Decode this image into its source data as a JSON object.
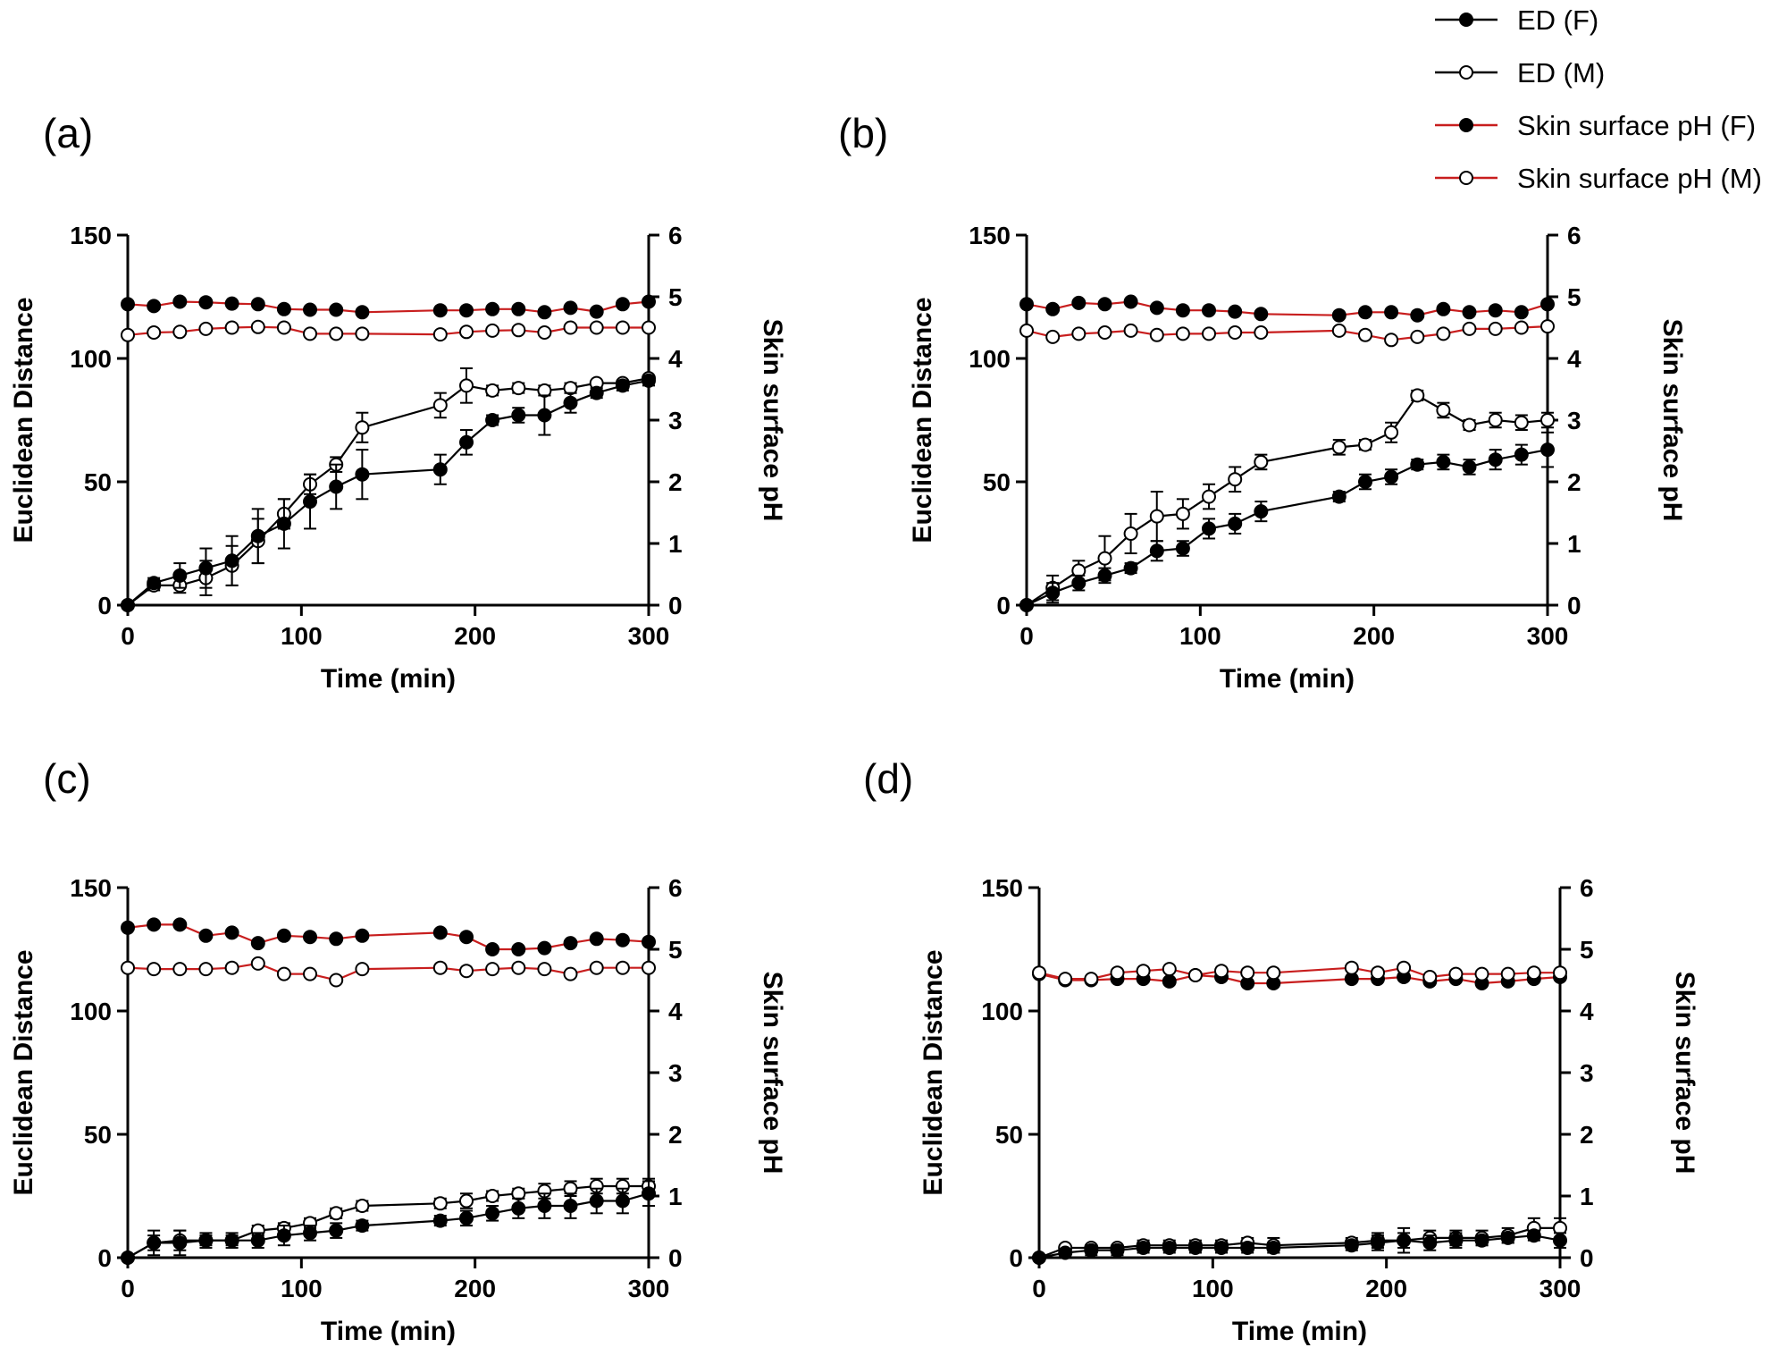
{
  "colors": {
    "ed_line": "#000000",
    "ph_line": "#c81e1e",
    "marker": "#000000"
  },
  "legend": [
    {
      "label": "ED (F)",
      "line": "black",
      "marker": "filled"
    },
    {
      "label": "ED (M)",
      "line": "black",
      "marker": "open"
    },
    {
      "label": "Skin surface pH (F)",
      "line": "red",
      "marker": "filled"
    },
    {
      "label": "Skin surface pH (M)",
      "line": "red",
      "marker": "open"
    }
  ],
  "chart_data": [
    {
      "panel": "(a)",
      "type": "line",
      "xlabel": "Time (min)",
      "ylabel": "Euclidean Distance",
      "y2label": "Skin surface pH",
      "xlim": [
        0,
        300
      ],
      "ylim": [
        0,
        150
      ],
      "y2lim": [
        0,
        6
      ],
      "xticks": [
        "0",
        "100",
        "200",
        "300"
      ],
      "yticks": [
        "0",
        "50",
        "100",
        "150"
      ],
      "y2ticks": [
        "0",
        "1",
        "2",
        "3",
        "4",
        "5",
        "6"
      ],
      "x": [
        0,
        15,
        30,
        45,
        60,
        75,
        90,
        105,
        120,
        135,
        180,
        195,
        210,
        225,
        240,
        255,
        270,
        285,
        300
      ],
      "series": [
        {
          "name": "ED (F)",
          "axis": "left",
          "values": [
            0,
            9,
            12,
            15,
            18,
            28,
            33,
            42,
            48,
            53,
            55,
            66,
            75,
            77,
            77,
            82,
            86,
            89,
            91
          ],
          "err": [
            0,
            2,
            5,
            8,
            10,
            11,
            10,
            11,
            9,
            10,
            6,
            5,
            2,
            3,
            8,
            4,
            2,
            2,
            2
          ]
        },
        {
          "name": "ED (M)",
          "axis": "left",
          "values": [
            0,
            8,
            8,
            11,
            16,
            26,
            37,
            49,
            57,
            72,
            81,
            89,
            87,
            88,
            87,
            88,
            90,
            90,
            92
          ],
          "err": [
            0,
            2,
            3,
            7,
            8,
            9,
            6,
            4,
            3,
            6,
            5,
            7,
            2,
            2,
            2,
            2,
            1,
            1,
            1
          ]
        },
        {
          "name": "Skin surface pH (F)",
          "axis": "right",
          "values": [
            4.88,
            4.85,
            4.92,
            4.91,
            4.89,
            4.88,
            4.8,
            4.79,
            4.79,
            4.75,
            4.78,
            4.78,
            4.8,
            4.8,
            4.75,
            4.82,
            4.76,
            4.88,
            4.92
          ]
        },
        {
          "name": "Skin surface pH (M)",
          "axis": "right",
          "values": [
            4.38,
            4.42,
            4.43,
            4.48,
            4.5,
            4.51,
            4.5,
            4.4,
            4.4,
            4.4,
            4.39,
            4.43,
            4.45,
            4.46,
            4.42,
            4.5,
            4.5,
            4.5,
            4.5
          ]
        }
      ]
    },
    {
      "panel": "(b)",
      "type": "line",
      "xlabel": "Time (min)",
      "ylabel": "Euclidean Distance",
      "y2label": "Skin surface pH",
      "xlim": [
        0,
        300
      ],
      "ylim": [
        0,
        150
      ],
      "y2lim": [
        0,
        6
      ],
      "xticks": [
        "0",
        "100",
        "200",
        "300"
      ],
      "yticks": [
        "0",
        "50",
        "100",
        "150"
      ],
      "y2ticks": [
        "0",
        "1",
        "2",
        "3",
        "4",
        "5",
        "6"
      ],
      "x": [
        0,
        15,
        30,
        45,
        60,
        75,
        90,
        105,
        120,
        135,
        180,
        195,
        210,
        225,
        240,
        255,
        270,
        285,
        300
      ],
      "series": [
        {
          "name": "ED (F)",
          "axis": "left",
          "values": [
            0,
            5,
            9,
            12,
            15,
            22,
            23,
            31,
            33,
            38,
            44,
            50,
            52,
            57,
            58,
            56,
            59,
            61,
            63
          ],
          "err": [
            0,
            4,
            3,
            3,
            2,
            4,
            3,
            4,
            4,
            4,
            2,
            3,
            3,
            2,
            3,
            3,
            4,
            4,
            7
          ]
        },
        {
          "name": "ED (M)",
          "axis": "left",
          "values": [
            0,
            7,
            14,
            19,
            29,
            36,
            37,
            44,
            51,
            58,
            64,
            65,
            70,
            85,
            79,
            73,
            75,
            74,
            75
          ],
          "err": [
            0,
            5,
            4,
            9,
            8,
            10,
            6,
            5,
            5,
            3,
            3,
            2,
            4,
            2,
            3,
            2,
            3,
            3,
            3
          ]
        },
        {
          "name": "Skin surface pH (F)",
          "axis": "right",
          "values": [
            4.88,
            4.8,
            4.9,
            4.88,
            4.92,
            4.82,
            4.78,
            4.78,
            4.76,
            4.72,
            4.7,
            4.75,
            4.75,
            4.7,
            4.8,
            4.75,
            4.78,
            4.75,
            4.88
          ]
        },
        {
          "name": "Skin surface pH (M)",
          "axis": "right",
          "values": [
            4.45,
            4.35,
            4.4,
            4.42,
            4.45,
            4.38,
            4.4,
            4.4,
            4.42,
            4.42,
            4.45,
            4.38,
            4.3,
            4.35,
            4.4,
            4.48,
            4.48,
            4.5,
            4.52
          ]
        }
      ]
    },
    {
      "panel": "(c)",
      "type": "line",
      "xlabel": "Time (min)",
      "ylabel": "Euclidean Distance",
      "y2label": "Skin surface pH",
      "xlim": [
        0,
        300
      ],
      "ylim": [
        0,
        150
      ],
      "y2lim": [
        0,
        6
      ],
      "xticks": [
        "0",
        "100",
        "200",
        "300"
      ],
      "yticks": [
        "0",
        "50",
        "100",
        "150"
      ],
      "y2ticks": [
        "0",
        "1",
        "2",
        "3",
        "4",
        "5",
        "6"
      ],
      "x": [
        0,
        15,
        30,
        45,
        60,
        75,
        90,
        105,
        120,
        135,
        180,
        195,
        210,
        225,
        240,
        255,
        270,
        285,
        300
      ],
      "series": [
        {
          "name": "ED (F)",
          "axis": "left",
          "values": [
            0,
            6,
            6,
            7,
            7,
            7,
            9,
            10,
            11,
            13,
            15,
            16,
            18,
            20,
            21,
            21,
            23,
            23,
            26
          ],
          "err": [
            0,
            5,
            5,
            3,
            3,
            3,
            4,
            3,
            3,
            2,
            2,
            3,
            3,
            4,
            5,
            5,
            5,
            5,
            5
          ]
        },
        {
          "name": "ED (M)",
          "axis": "left",
          "values": [
            0,
            6,
            7,
            7,
            7,
            11,
            12,
            14,
            18,
            21,
            22,
            23,
            25,
            26,
            27,
            28,
            29,
            29,
            29
          ],
          "err": [
            0,
            3,
            4,
            2,
            2,
            2,
            2,
            2,
            2,
            2,
            2,
            3,
            2,
            2,
            3,
            3,
            3,
            3,
            3
          ]
        },
        {
          "name": "Skin surface pH (F)",
          "axis": "right",
          "values": [
            5.35,
            5.4,
            5.4,
            5.22,
            5.27,
            5.1,
            5.22,
            5.2,
            5.17,
            5.22,
            5.27,
            5.2,
            5.0,
            5.0,
            5.02,
            5.1,
            5.17,
            5.15,
            5.12
          ]
        },
        {
          "name": "Skin surface pH (M)",
          "axis": "right",
          "values": [
            4.7,
            4.68,
            4.68,
            4.68,
            4.7,
            4.77,
            4.6,
            4.6,
            4.5,
            4.68,
            4.7,
            4.65,
            4.68,
            4.7,
            4.68,
            4.6,
            4.7,
            4.7,
            4.7
          ]
        }
      ]
    },
    {
      "panel": "(d)",
      "type": "line",
      "xlabel": "Time (min)",
      "ylabel": "Euclidean Distance",
      "y2label": "Skin surface pH",
      "xlim": [
        0,
        300
      ],
      "ylim": [
        0,
        150
      ],
      "y2lim": [
        0,
        6
      ],
      "xticks": [
        "0",
        "100",
        "200",
        "300"
      ],
      "yticks": [
        "0",
        "50",
        "100",
        "150"
      ],
      "y2ticks": [
        "0",
        "1",
        "2",
        "3",
        "4",
        "5",
        "6"
      ],
      "x": [
        0,
        15,
        30,
        45,
        60,
        75,
        90,
        105,
        120,
        135,
        180,
        195,
        210,
        225,
        240,
        255,
        270,
        285,
        300
      ],
      "series": [
        {
          "name": "ED (F)",
          "axis": "left",
          "values": [
            0,
            2,
            3,
            3,
            4,
            4,
            4,
            4,
            4,
            4,
            5,
            6,
            7,
            6,
            7,
            7,
            8,
            9,
            7
          ],
          "err": [
            0,
            1,
            2,
            2,
            2,
            2,
            2,
            2,
            2,
            2,
            2,
            3,
            3,
            3,
            3,
            2,
            2,
            2,
            3
          ]
        },
        {
          "name": "ED (M)",
          "axis": "left",
          "values": [
            0,
            4,
            4,
            4,
            5,
            5,
            5,
            5,
            6,
            5,
            6,
            7,
            7,
            8,
            8,
            8,
            9,
            12,
            12
          ],
          "err": [
            0,
            1,
            1,
            1,
            2,
            2,
            2,
            2,
            2,
            3,
            2,
            3,
            5,
            3,
            3,
            3,
            3,
            4,
            4
          ]
        },
        {
          "name": "Skin surface pH (F)",
          "axis": "right",
          "values": [
            4.6,
            4.5,
            4.5,
            4.52,
            4.52,
            4.48,
            4.58,
            4.55,
            4.45,
            4.45,
            4.52,
            4.52,
            4.55,
            4.48,
            4.52,
            4.45,
            4.48,
            4.52,
            4.55
          ]
        },
        {
          "name": "Skin surface pH (M)",
          "axis": "right",
          "values": [
            4.62,
            4.52,
            4.52,
            4.62,
            4.65,
            4.68,
            4.58,
            4.65,
            4.62,
            4.62,
            4.7,
            4.62,
            4.7,
            4.55,
            4.6,
            4.6,
            4.6,
            4.62,
            4.62
          ]
        }
      ]
    }
  ]
}
